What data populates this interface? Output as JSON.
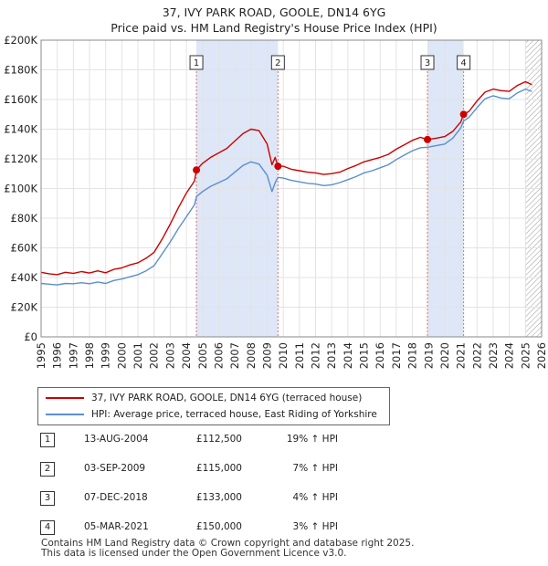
{
  "title": {
    "line1": "37, IVY PARK ROAD, GOOLE, DN14 6YG",
    "line2": "Price paid vs. HM Land Registry's House Price Index (HPI)"
  },
  "chart_data": {
    "type": "line",
    "y_tick_labels": [
      "£0",
      "£20K",
      "£40K",
      "£60K",
      "£80K",
      "£100K",
      "£120K",
      "£140K",
      "£160K",
      "£180K",
      "£200K"
    ],
    "x_tick_labels": [
      "1995",
      "1996",
      "1997",
      "1998",
      "1999",
      "2000",
      "2001",
      "2002",
      "2003",
      "2004",
      "2005",
      "2006",
      "2007",
      "2008",
      "2009",
      "2010",
      "2011",
      "2012",
      "2013",
      "2014",
      "2015",
      "2016",
      "2017",
      "2018",
      "2019",
      "2020",
      "2021",
      "2022",
      "2023",
      "2024",
      "2025",
      "2026"
    ],
    "ylim": [
      0,
      200000
    ],
    "xlim": [
      1995,
      2026
    ],
    "colors": {
      "property": "#cc0000",
      "hpi": "#5b8ed1",
      "shade": "#dde7f7",
      "marker_line": "#e07070",
      "hatch": "#999999"
    },
    "series": [
      {
        "name": "37, IVY PARK ROAD, GOOLE, DN14 6YG (terraced house)",
        "points": [
          [
            1995.0,
            43500
          ],
          [
            1995.5,
            42500
          ],
          [
            1996.0,
            42000
          ],
          [
            1996.5,
            43500
          ],
          [
            1997.0,
            42800
          ],
          [
            1997.5,
            44000
          ],
          [
            1998.0,
            43000
          ],
          [
            1998.5,
            44500
          ],
          [
            1999.0,
            43200
          ],
          [
            1999.5,
            45500
          ],
          [
            2000.0,
            46500
          ],
          [
            2000.5,
            48500
          ],
          [
            2001.0,
            50000
          ],
          [
            2001.5,
            53000
          ],
          [
            2002.0,
            57000
          ],
          [
            2002.5,
            66000
          ],
          [
            2003.0,
            76000
          ],
          [
            2003.5,
            87000
          ],
          [
            2004.0,
            97000
          ],
          [
            2004.5,
            105000
          ],
          [
            2004.62,
            112500
          ],
          [
            2005.0,
            117000
          ],
          [
            2005.5,
            121000
          ],
          [
            2006.0,
            124000
          ],
          [
            2006.5,
            127000
          ],
          [
            2007.0,
            132000
          ],
          [
            2007.5,
            137000
          ],
          [
            2008.0,
            140000
          ],
          [
            2008.5,
            139000
          ],
          [
            2009.0,
            130000
          ],
          [
            2009.3,
            116000
          ],
          [
            2009.5,
            121000
          ],
          [
            2009.67,
            115000
          ],
          [
            2010.0,
            115000
          ],
          [
            2010.5,
            113000
          ],
          [
            2011.0,
            112000
          ],
          [
            2011.5,
            111000
          ],
          [
            2012.0,
            110500
          ],
          [
            2012.5,
            109500
          ],
          [
            2013.0,
            110000
          ],
          [
            2013.5,
            111000
          ],
          [
            2014.0,
            113500
          ],
          [
            2014.5,
            115500
          ],
          [
            2015.0,
            118000
          ],
          [
            2015.5,
            119500
          ],
          [
            2016.0,
            121000
          ],
          [
            2016.5,
            123000
          ],
          [
            2017.0,
            126500
          ],
          [
            2017.5,
            129500
          ],
          [
            2018.0,
            132500
          ],
          [
            2018.5,
            134500
          ],
          [
            2018.93,
            133000
          ],
          [
            2019.5,
            134000
          ],
          [
            2020.0,
            135000
          ],
          [
            2020.5,
            138500
          ],
          [
            2021.0,
            145000
          ],
          [
            2021.17,
            150000
          ],
          [
            2021.5,
            152000
          ],
          [
            2022.0,
            159000
          ],
          [
            2022.5,
            165000
          ],
          [
            2023.0,
            167000
          ],
          [
            2023.5,
            166000
          ],
          [
            2024.0,
            165500
          ],
          [
            2024.5,
            169500
          ],
          [
            2025.0,
            172000
          ],
          [
            2025.4,
            170000
          ]
        ]
      },
      {
        "name": "HPI: Average price, terraced house, East Riding of Yorkshire",
        "points": [
          [
            1995.0,
            36000
          ],
          [
            1995.5,
            35500
          ],
          [
            1996.0,
            35000
          ],
          [
            1996.5,
            36000
          ],
          [
            1997.0,
            35800
          ],
          [
            1997.5,
            36500
          ],
          [
            1998.0,
            35800
          ],
          [
            1998.5,
            37000
          ],
          [
            1999.0,
            36000
          ],
          [
            1999.5,
            38000
          ],
          [
            2000.0,
            39000
          ],
          [
            2000.5,
            40500
          ],
          [
            2001.0,
            42000
          ],
          [
            2001.5,
            44500
          ],
          [
            2002.0,
            48000
          ],
          [
            2002.5,
            56000
          ],
          [
            2003.0,
            64000
          ],
          [
            2003.5,
            73000
          ],
          [
            2004.0,
            81000
          ],
          [
            2004.5,
            89000
          ],
          [
            2004.62,
            94500
          ],
          [
            2005.0,
            98000
          ],
          [
            2005.5,
            101500
          ],
          [
            2006.0,
            104000
          ],
          [
            2006.5,
            106500
          ],
          [
            2007.0,
            111000
          ],
          [
            2007.5,
            115500
          ],
          [
            2008.0,
            118000
          ],
          [
            2008.5,
            116500
          ],
          [
            2009.0,
            109000
          ],
          [
            2009.3,
            98000
          ],
          [
            2009.5,
            104000
          ],
          [
            2009.67,
            107500
          ],
          [
            2010.0,
            107000
          ],
          [
            2010.5,
            105500
          ],
          [
            2011.0,
            104500
          ],
          [
            2011.5,
            103500
          ],
          [
            2012.0,
            103000
          ],
          [
            2012.5,
            102000
          ],
          [
            2013.0,
            102500
          ],
          [
            2013.5,
            104000
          ],
          [
            2014.0,
            106000
          ],
          [
            2014.5,
            108000
          ],
          [
            2015.0,
            110500
          ],
          [
            2015.5,
            112000
          ],
          [
            2016.0,
            114000
          ],
          [
            2016.5,
            116000
          ],
          [
            2017.0,
            119500
          ],
          [
            2017.5,
            122500
          ],
          [
            2018.0,
            125500
          ],
          [
            2018.5,
            127500
          ],
          [
            2018.93,
            127800
          ],
          [
            2019.5,
            129000
          ],
          [
            2020.0,
            130000
          ],
          [
            2020.5,
            134000
          ],
          [
            2021.0,
            141000
          ],
          [
            2021.17,
            145500
          ],
          [
            2021.5,
            148000
          ],
          [
            2022.0,
            154500
          ],
          [
            2022.5,
            160500
          ],
          [
            2023.0,
            162500
          ],
          [
            2023.5,
            161000
          ],
          [
            2024.0,
            160500
          ],
          [
            2024.5,
            164500
          ],
          [
            2025.0,
            167000
          ],
          [
            2025.4,
            165500
          ]
        ]
      }
    ],
    "sales": [
      {
        "id": "1",
        "x": 2004.62,
        "y": 112500
      },
      {
        "id": "2",
        "x": 2009.67,
        "y": 115000
      },
      {
        "id": "3",
        "x": 2018.93,
        "y": 133000
      },
      {
        "id": "4",
        "x": 2021.17,
        "y": 150000
      }
    ],
    "shaded_ranges": [
      [
        2004.62,
        2009.67
      ],
      [
        2018.93,
        2021.17
      ]
    ],
    "hatch_from": 2025.0
  },
  "legend": {
    "property_label": "37, IVY PARK ROAD, GOOLE, DN14 6YG (terraced house)",
    "hpi_label": "HPI: Average price, terraced house, East Riding of Yorkshire"
  },
  "transactions": [
    {
      "num": "1",
      "date": "13-AUG-2004",
      "price": "£112,500",
      "hpi": "19% ↑ HPI"
    },
    {
      "num": "2",
      "date": "03-SEP-2009",
      "price": "£115,000",
      "hpi": "7% ↑ HPI"
    },
    {
      "num": "3",
      "date": "07-DEC-2018",
      "price": "£133,000",
      "hpi": "4% ↑ HPI"
    },
    {
      "num": "4",
      "date": "05-MAR-2021",
      "price": "£150,000",
      "hpi": "3% ↑ HPI"
    }
  ],
  "footer": {
    "line1": "Contains HM Land Registry data © Crown copyright and database right 2025.",
    "line2": "This data is licensed under the Open Government Licence v3.0."
  }
}
